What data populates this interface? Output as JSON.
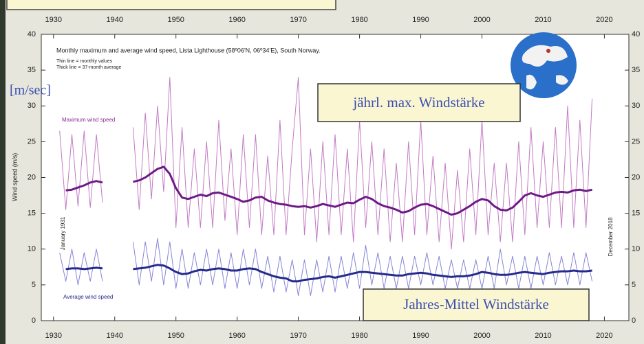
{
  "chart_data": {
    "type": "line",
    "title": "Monthly maximum and average wind speed, Lista Lighthouse (58º06'N, 06º34'E), South Norway.",
    "notes": [
      "Thin line = monthly values",
      "Thick line = 37-month average"
    ],
    "y_label": "Wind speed (m/s)",
    "start_label": "January 1931",
    "end_label": "December 2018",
    "annotations": [
      "[m/sec]",
      "jährl. max. Windstärke",
      "Jahres-Mittel Windstärke"
    ],
    "xlim": [
      1928,
      2024
    ],
    "xticks": [
      1930,
      1940,
      1950,
      1960,
      1970,
      1980,
      1990,
      2000,
      2010,
      2020
    ],
    "ylim": [
      0,
      40
    ],
    "yticks": [
      0,
      5,
      10,
      15,
      20,
      25,
      30,
      35,
      40
    ],
    "series": [
      {
        "name": "Maximum wind speed",
        "color": "#c27ac4",
        "smoothed_color": "#6e1a86",
        "x": [
          1931,
          1932,
          1933,
          1934,
          1935,
          1936,
          1937,
          1938,
          1940,
          1943,
          1944,
          1945,
          1946,
          1947,
          1948,
          1949,
          1950,
          1951,
          1952,
          1953,
          1954,
          1955,
          1956,
          1957,
          1958,
          1959,
          1960,
          1961,
          1962,
          1963,
          1964,
          1965,
          1966,
          1967,
          1968,
          1969,
          1970,
          1971,
          1972,
          1973,
          1974,
          1975,
          1976,
          1977,
          1978,
          1979,
          1980,
          1981,
          1982,
          1983,
          1984,
          1985,
          1986,
          1987,
          1988,
          1989,
          1990,
          1991,
          1992,
          1993,
          1994,
          1995,
          1996,
          1997,
          1998,
          1999,
          2000,
          2001,
          2002,
          2003,
          2004,
          2005,
          2006,
          2007,
          2008,
          2009,
          2010,
          2011,
          2012,
          2013,
          2014,
          2015,
          2016,
          2017,
          2018
        ],
        "values": [
          26.5,
          15.5,
          26,
          16,
          26.5,
          15.8,
          26,
          16.5,
          null,
          27,
          15.5,
          29,
          17,
          30,
          18,
          34,
          13,
          27,
          13,
          24,
          13,
          25,
          13,
          28,
          14,
          24,
          12,
          26,
          13,
          26,
          12,
          23,
          12,
          28,
          12,
          24,
          34,
          12,
          24,
          11,
          25,
          12,
          26,
          12,
          24,
          11,
          28,
          13,
          25,
          12,
          24,
          11,
          22,
          11,
          25,
          12,
          28,
          12,
          23,
          11,
          22,
          10,
          21,
          11,
          24,
          12,
          28,
          12,
          22,
          11,
          22,
          11,
          25,
          12,
          27,
          13,
          25,
          13,
          27,
          13,
          30,
          13,
          28,
          13,
          31
        ],
        "smoothed_x": [
          1932,
          1933,
          1934,
          1935,
          1936,
          1937,
          1938,
          1940,
          1943,
          1944,
          1945,
          1946,
          1947,
          1948,
          1949,
          1950,
          1951,
          1952,
          1953,
          1954,
          1955,
          1956,
          1957,
          1958,
          1959,
          1960,
          1961,
          1962,
          1963,
          1964,
          1965,
          1966,
          1967,
          1968,
          1969,
          1970,
          1971,
          1972,
          1973,
          1974,
          1975,
          1976,
          1977,
          1978,
          1979,
          1980,
          1981,
          1982,
          1983,
          1984,
          1985,
          1986,
          1987,
          1988,
          1989,
          1990,
          1991,
          1992,
          1993,
          1994,
          1995,
          1996,
          1997,
          1998,
          1999,
          2000,
          2001,
          2002,
          2003,
          2004,
          2005,
          2006,
          2007,
          2008,
          2009,
          2010,
          2011,
          2012,
          2013,
          2014,
          2015,
          2016,
          2017,
          2018
        ],
        "smoothed": [
          18.2,
          18.3,
          18.6,
          18.9,
          19.3,
          19.5,
          19.3,
          null,
          19.4,
          19.6,
          20,
          20.6,
          21.2,
          21.5,
          20.5,
          18.5,
          17.2,
          17,
          17.3,
          17.6,
          17.4,
          17.8,
          17.9,
          17.6,
          17.3,
          17,
          16.6,
          16.8,
          17.2,
          17.3,
          16.8,
          16.5,
          16.3,
          16.2,
          16,
          15.9,
          16,
          15.8,
          16,
          16.3,
          16.1,
          15.9,
          16.2,
          16.5,
          16.4,
          16.9,
          17.3,
          17,
          16.4,
          16,
          15.8,
          15.5,
          15.1,
          15.3,
          15.8,
          16.2,
          16.3,
          16,
          15.6,
          15.2,
          14.8,
          15,
          15.5,
          16,
          16.6,
          17,
          16.8,
          16,
          15.5,
          15.4,
          15.8,
          16.6,
          17.5,
          17.8,
          17.5,
          17.3,
          17.6,
          17.9,
          18,
          17.9,
          18.2,
          18.3,
          18.1,
          18.3
        ]
      },
      {
        "name": "Average wind speed",
        "color": "#8585d6",
        "smoothed_color": "#262a8c",
        "x": [
          1931,
          1932,
          1933,
          1934,
          1935,
          1936,
          1937,
          1938,
          1940,
          1943,
          1944,
          1945,
          1946,
          1947,
          1948,
          1949,
          1950,
          1951,
          1952,
          1953,
          1954,
          1955,
          1956,
          1957,
          1958,
          1959,
          1960,
          1961,
          1962,
          1963,
          1964,
          1965,
          1966,
          1967,
          1968,
          1969,
          1970,
          1971,
          1972,
          1973,
          1974,
          1975,
          1976,
          1977,
          1978,
          1979,
          1980,
          1981,
          1982,
          1983,
          1984,
          1985,
          1986,
          1987,
          1988,
          1989,
          1990,
          1991,
          1992,
          1993,
          1994,
          1995,
          1996,
          1997,
          1998,
          1999,
          2000,
          2001,
          2002,
          2003,
          2004,
          2005,
          2006,
          2007,
          2008,
          2009,
          2010,
          2011,
          2012,
          2013,
          2014,
          2015,
          2016,
          2017,
          2018
        ],
        "values": [
          9.5,
          5.5,
          10,
          5,
          9.5,
          5.5,
          10,
          5.5,
          null,
          11,
          5,
          11,
          5.5,
          11.5,
          5,
          11,
          4.5,
          10,
          4.5,
          9.5,
          5,
          10,
          5,
          10,
          4.5,
          9.5,
          4.5,
          10,
          5,
          10,
          4.5,
          9,
          4,
          9,
          4,
          8.5,
          3.5,
          8.5,
          3.5,
          8.5,
          4,
          9,
          4,
          9,
          4.5,
          9.5,
          4.5,
          10.5,
          5,
          9.5,
          4.5,
          9,
          4.5,
          9,
          4.5,
          9,
          5,
          9.5,
          5,
          9,
          4.5,
          8.5,
          4.5,
          8.5,
          4.5,
          8.5,
          4.5,
          9,
          4.5,
          10,
          5,
          9,
          4.5,
          9,
          4.5,
          9,
          5,
          9.5,
          5,
          9,
          5,
          9.5,
          5,
          9.5,
          5.5
        ],
        "smoothed_x": [
          1932,
          1933,
          1934,
          1935,
          1936,
          1937,
          1938,
          1940,
          1943,
          1944,
          1945,
          1946,
          1947,
          1948,
          1949,
          1950,
          1951,
          1952,
          1953,
          1954,
          1955,
          1956,
          1957,
          1958,
          1959,
          1960,
          1961,
          1962,
          1963,
          1964,
          1965,
          1966,
          1967,
          1968,
          1969,
          1970,
          1971,
          1972,
          1973,
          1974,
          1975,
          1976,
          1977,
          1978,
          1979,
          1980,
          1981,
          1982,
          1983,
          1984,
          1985,
          1986,
          1987,
          1988,
          1989,
          1990,
          1991,
          1992,
          1993,
          1994,
          1995,
          1996,
          1997,
          1998,
          1999,
          2000,
          2001,
          2002,
          2003,
          2004,
          2005,
          2006,
          2007,
          2008,
          2009,
          2010,
          2011,
          2012,
          2013,
          2014,
          2015,
          2016,
          2017,
          2018
        ],
        "smoothed": [
          7.2,
          7.3,
          7.3,
          7.2,
          7.3,
          7.4,
          7.3,
          null,
          7.2,
          7.3,
          7.4,
          7.6,
          7.8,
          7.7,
          7.3,
          6.8,
          6.5,
          6.6,
          6.9,
          7.1,
          7,
          7.2,
          7.3,
          7.2,
          7,
          7,
          7.2,
          7.3,
          7.2,
          6.8,
          6.5,
          6.2,
          6,
          5.9,
          5.5,
          5.5,
          5.7,
          5.8,
          5.9,
          6.1,
          6.2,
          6,
          6.2,
          6.4,
          6.6,
          6.8,
          6.8,
          6.7,
          6.6,
          6.5,
          6.4,
          6.3,
          6.3,
          6.5,
          6.6,
          6.7,
          6.6,
          6.4,
          6.3,
          6.2,
          6.1,
          6.2,
          6.2,
          6.3,
          6.5,
          6.8,
          6.7,
          6.5,
          6.4,
          6.4,
          6.5,
          6.7,
          6.8,
          6.7,
          6.6,
          6.5,
          6.7,
          6.8,
          6.9,
          6.9,
          7,
          6.9,
          6.9,
          7
        ]
      }
    ]
  }
}
